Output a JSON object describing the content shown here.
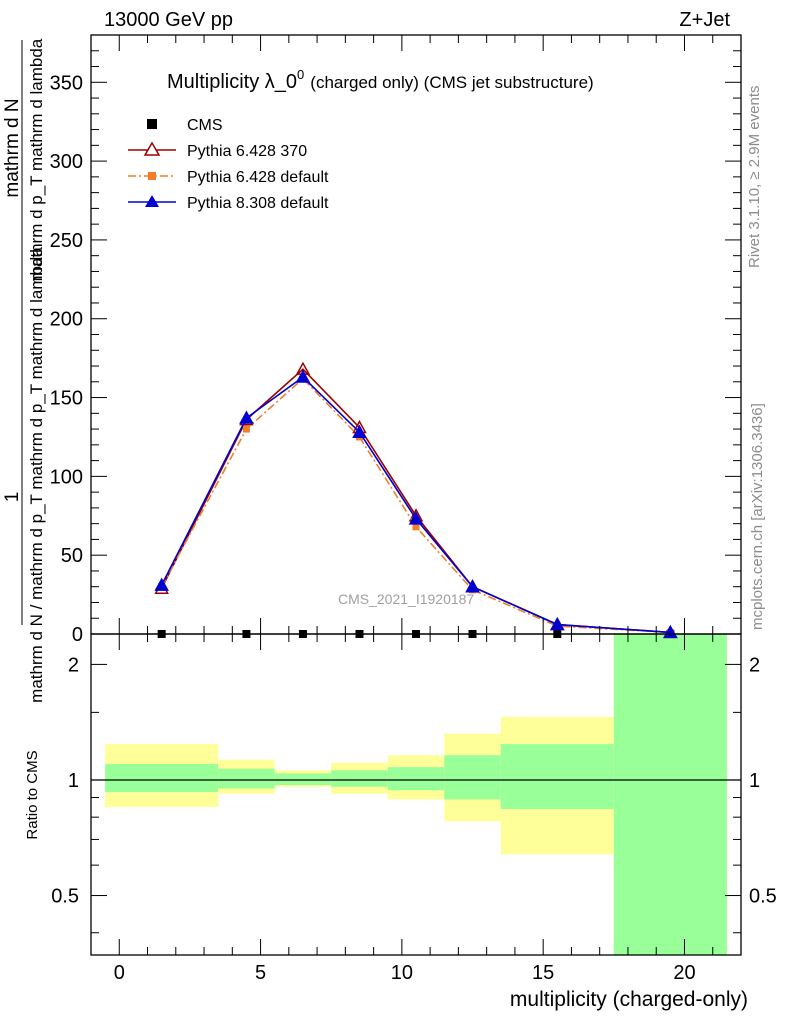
{
  "header": {
    "left": "13000 GeV pp",
    "right": "Z+Jet"
  },
  "sidebar": {
    "rivet": "Rivet 3.1.10, ≥ 2.9M events",
    "mcplots": "mcplots.cern.ch [arXiv:1306.3436]"
  },
  "chart_data": [
    {
      "type": "line",
      "title_main": "Multiplicity λ_0",
      "title_sup": "0",
      "title_sub": "(charged only) (CMS jet substructure)",
      "watermark": "CMS_2021_I1920187",
      "ylabel": {
        "frac_num_1": "mathrm d N",
        "frac_num_2": "mathrm d p_T mathrm d lambda",
        "frac_num_3": "mathrm d",
        "prefix": "1",
        "frac_den": "mathrm d N / mathrm d p_T mathrm d p_T mathrm d lambda"
      },
      "ylim": [
        0,
        380
      ],
      "xlim": [
        -1,
        22
      ],
      "yticks": [
        0,
        50,
        100,
        150,
        200,
        250,
        300,
        350
      ],
      "yticklabels": [
        "0",
        "50",
        "100",
        "150",
        "200",
        "250",
        "300",
        "350"
      ],
      "legend_position": "top-left",
      "x": [
        1.5,
        4.5,
        6.5,
        8.5,
        10.5,
        12.5,
        15.5,
        19.5
      ],
      "series": [
        {
          "name": "CMS",
          "color": "#000000",
          "marker": "square",
          "values": [
            0,
            0,
            0,
            0,
            0,
            0,
            0,
            0
          ]
        },
        {
          "name": "Pythia 6.428 370",
          "color": "#9b0000",
          "marker": "triangle-open",
          "line": "solid",
          "values": [
            29,
            136,
            168,
            131,
            75,
            30,
            6,
            1
          ]
        },
        {
          "name": "Pythia 6.428 default",
          "color": "#f07f27",
          "marker": "square-small",
          "line": "dashdot",
          "values": [
            30,
            130,
            162,
            125,
            68,
            28,
            5,
            1
          ]
        },
        {
          "name": "Pythia 8.308 default",
          "color": "#0000d0",
          "marker": "triangle",
          "line": "solid",
          "values": [
            31,
            137,
            163,
            128,
            73,
            30,
            6,
            1
          ]
        }
      ]
    },
    {
      "type": "area",
      "ylabel": "Ratio to CMS",
      "xlabel": "multiplicity (charged-only)",
      "ylog": true,
      "ylim": [
        0.35,
        2.4
      ],
      "xlim": [
        -1,
        22
      ],
      "yticklabels": [
        "0.5",
        "1",
        "2"
      ],
      "yticks": [
        0.5,
        1,
        2
      ],
      "xticklabels": [
        "0",
        "5",
        "10",
        "15",
        "20"
      ],
      "xticks": [
        0,
        5,
        10,
        15,
        20
      ],
      "reference_line": 1,
      "bands": {
        "inner_color": "#99ff99",
        "outer_color": "#ffff99",
        "bins": [
          {
            "x0": -0.5,
            "x1": 3.5,
            "inner": [
              0.93,
              1.1
            ],
            "outer": [
              0.85,
              1.24
            ]
          },
          {
            "x0": 3.5,
            "x1": 5.5,
            "inner": [
              0.95,
              1.07
            ],
            "outer": [
              0.92,
              1.13
            ]
          },
          {
            "x0": 5.5,
            "x1": 7.5,
            "inner": [
              0.97,
              1.04
            ],
            "outer": [
              0.96,
              1.06
            ]
          },
          {
            "x0": 7.5,
            "x1": 9.5,
            "inner": [
              0.96,
              1.06
            ],
            "outer": [
              0.92,
              1.11
            ]
          },
          {
            "x0": 9.5,
            "x1": 11.5,
            "inner": [
              0.94,
              1.08
            ],
            "outer": [
              0.89,
              1.16
            ]
          },
          {
            "x0": 11.5,
            "x1": 13.5,
            "inner": [
              0.89,
              1.16
            ],
            "outer": [
              0.78,
              1.32
            ]
          },
          {
            "x0": 13.5,
            "x1": 17.5,
            "inner": [
              0.84,
              1.24
            ],
            "outer": [
              0.64,
              1.46
            ]
          },
          {
            "x0": 17.5,
            "x1": 21.5,
            "inner": [
              0.35,
              2.4
            ],
            "outer": [
              0.35,
              2.4
            ]
          }
        ]
      }
    }
  ]
}
